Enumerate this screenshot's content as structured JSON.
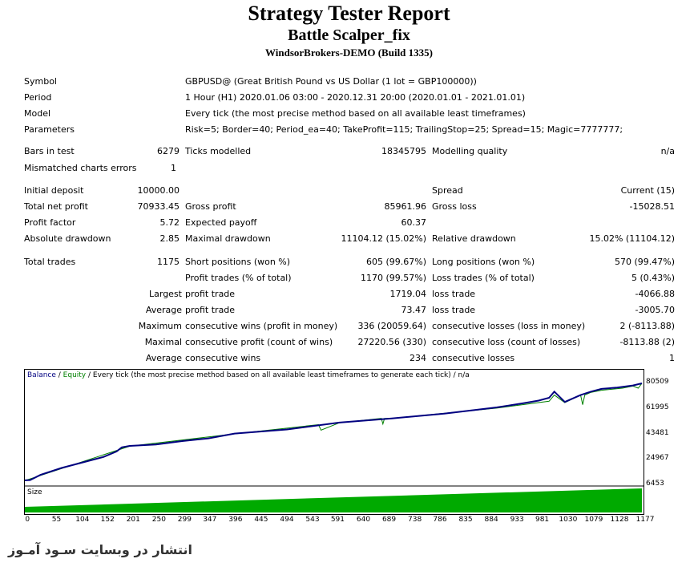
{
  "report": {
    "title": "Strategy Tester Report",
    "expert": "Battle Scalper_fix",
    "broker": "WindsorBrokers-DEMO (Build 1335)"
  },
  "info": {
    "symbol_label": "Symbol",
    "symbol_value": "GBPUSD@ (Great British Pound vs US Dollar (1 lot = GBP100000))",
    "period_label": "Period",
    "period_value": "1 Hour (H1) 2020.01.06 03:00 - 2020.12.31 20:00 (2020.01.01 - 2021.01.01)",
    "model_label": "Model",
    "model_value": "Every tick (the most precise method based on all available least timeframes)",
    "params_label": "Parameters",
    "params_value": "Risk=5; Border=40; Period_ea=40; TakeProfit=115; TrailingStop=25; Spread=15; Magic=7777777;"
  },
  "bars": {
    "bars_label": "Bars in test",
    "bars_value": "6279",
    "ticks_label": "Ticks modelled",
    "ticks_value": "18345795",
    "quality_label": "Modelling quality",
    "quality_value": "n/a",
    "mismatch_label": "Mismatched charts errors",
    "mismatch_value": "1"
  },
  "results": {
    "deposit_label": "Initial deposit",
    "deposit_value": "10000.00",
    "spread_label": "Spread",
    "spread_value": "Current (15)",
    "netprofit_label": "Total net profit",
    "netprofit_value": "70933.45",
    "grossprofit_label": "Gross profit",
    "grossprofit_value": "85961.96",
    "grossloss_label": "Gross loss",
    "grossloss_value": "-15028.51",
    "pf_label": "Profit factor",
    "pf_value": "5.72",
    "payoff_label": "Expected payoff",
    "payoff_value": "60.37",
    "absdd_label": "Absolute drawdown",
    "absdd_value": "2.85",
    "maxdd_label": "Maximal drawdown",
    "maxdd_value": "11104.12 (15.02%)",
    "reldd_label": "Relative drawdown",
    "reldd_value": "15.02% (11104.12)"
  },
  "trades": {
    "total_label": "Total trades",
    "total_value": "1175",
    "short_label": "Short positions (won %)",
    "short_value": "605 (99.67%)",
    "long_label": "Long positions (won %)",
    "long_value": "570 (99.47%)",
    "ptrades_label": "Profit trades (% of total)",
    "ptrades_value": "1170 (99.57%)",
    "ltrades_label": "Loss trades (% of total)",
    "ltrades_value": "5 (0.43%)",
    "largest_label": "Largest",
    "average_label": "Average",
    "maximum_label": "Maximum",
    "maximal_label": "Maximal",
    "average2_label": "Average",
    "lp_label": "profit trade",
    "lp_value": "1719.04",
    "ll_label": "loss trade",
    "ll_value": "-4066.88",
    "ap_label": "profit trade",
    "ap_value": "73.47",
    "al_label": "loss trade",
    "al_value": "-3005.70",
    "mcw_label": "consecutive wins (profit in money)",
    "mcw_value": "336 (20059.64)",
    "mcl_label": "consecutive losses (loss in money)",
    "mcl_value": "2 (-8113.88)",
    "xcp_label": "consecutive profit (count of wins)",
    "xcp_value": "27220.56 (330)",
    "xcl_label": "consecutive loss (count of losses)",
    "xcl_value": "-8113.88 (2)",
    "acw_label": "consecutive wins",
    "acw_value": "234",
    "acl_label": "consecutive losses",
    "acl_value": "1"
  },
  "graph": {
    "legend_balance": "Balance",
    "legend_sep": " / ",
    "legend_equity": "Equity",
    "legend_rest": " / Every tick (the most precise method based on all available least timeframes to generate each tick) / n/a",
    "size_label": "Size",
    "balance_color": "#000080",
    "equity_color": "#008000",
    "size_color": "#00aa00"
  },
  "chart_data": {
    "type": "line",
    "y_ticks": [
      "80509",
      "61995",
      "43481",
      "24967",
      "6453"
    ],
    "y_tick_values": [
      80509,
      61995,
      43481,
      24967,
      6453
    ],
    "x_ticks": [
      "0",
      "55",
      "104",
      "152",
      "201",
      "250",
      "299",
      "347",
      "396",
      "445",
      "494",
      "543",
      "591",
      "640",
      "689",
      "738",
      "786",
      "835",
      "884",
      "933",
      "981",
      "1030",
      "1079",
      "1128",
      "1177"
    ],
    "x_tick_values": [
      0,
      55,
      104,
      152,
      201,
      250,
      299,
      347,
      396,
      445,
      494,
      543,
      591,
      640,
      689,
      738,
      786,
      835,
      884,
      933,
      981,
      1030,
      1079,
      1128,
      1177
    ],
    "xlim": [
      0,
      1177
    ],
    "ylim": [
      6453,
      80509
    ],
    "series": [
      {
        "name": "Balance",
        "x": [
          0,
          10,
          30,
          70,
          110,
          150,
          175,
          185,
          200,
          250,
          300,
          350,
          400,
          500,
          600,
          700,
          800,
          900,
          950,
          980,
          1000,
          1010,
          1030,
          1060,
          1080,
          1100,
          1130,
          1160,
          1177
        ],
        "y": [
          10000,
          10200,
          14000,
          19000,
          23000,
          27000,
          31000,
          34000,
          35000,
          36000,
          38500,
          40500,
          44000,
          47000,
          52000,
          55000,
          58500,
          63000,
          66000,
          68000,
          70000,
          74500,
          67000,
          72000,
          74500,
          76500,
          77500,
          79000,
          80500
        ]
      },
      {
        "name": "Equity",
        "x": [
          0,
          200,
          400,
          560,
          565,
          600,
          680,
          683,
          686,
          700,
          900,
          1000,
          1010,
          1030,
          1060,
          1064,
          1068,
          1080,
          1100,
          1140,
          1160,
          1170,
          1177
        ],
        "y": [
          9800,
          34800,
          43800,
          50500,
          46500,
          51800,
          55000,
          51000,
          55000,
          55000,
          62500,
          67500,
          72000,
          66500,
          72000,
          65000,
          72000,
          74000,
          75500,
          77000,
          78500,
          77000,
          80500
        ]
      }
    ]
  },
  "watermark": "انتشار در وبسایت سـود آمـوز"
}
